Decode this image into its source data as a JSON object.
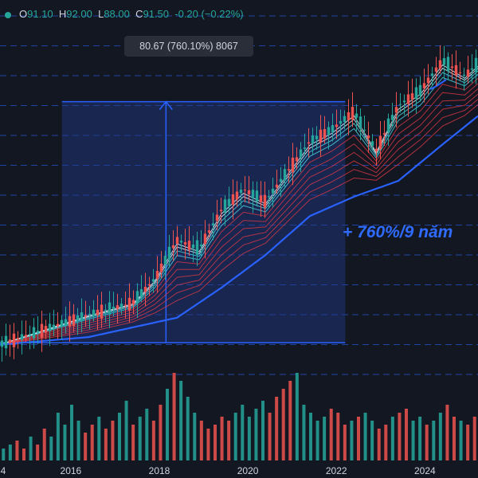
{
  "ohlc": {
    "o_label": "O",
    "o": "91.10",
    "h_label": "H",
    "h": "92.00",
    "l_label": "L",
    "l": "88.00",
    "c_label": "C",
    "c": "91.50",
    "change": "-0.20 (−0.22%)"
  },
  "measure_label": "80.67 (760.10%) 8067",
  "annotation": "+ 760%/9 năm",
  "colors": {
    "background": "#131722",
    "up": "#26a69a",
    "down": "#ef5350",
    "measure_box": "#1e3a8a",
    "measure_line": "#2962ff",
    "annotation": "#2f6bff"
  },
  "chart_data": {
    "type": "candlestick",
    "x_ticks": [
      "4",
      "2016",
      "2018",
      "2020",
      "2022",
      "2024"
    ],
    "x_range": [
      2014.0,
      2024.8
    ],
    "y_range": [
      0,
      120
    ],
    "measure": {
      "from_x": 2015.4,
      "to_x": 2021.8,
      "from_y": 10.6,
      "to_y": 91.3,
      "change": 80.67,
      "change_pct": 760.1,
      "bars": 8067
    },
    "series": [
      {
        "name": "price",
        "x": [
          2014.0,
          2015.0,
          2016.0,
          2017.0,
          2017.5,
          2018.0,
          2018.5,
          2019.0,
          2019.5,
          2020.0,
          2020.5,
          2021.0,
          2021.5,
          2022.0,
          2022.5,
          2023.0,
          2023.5,
          2024.0,
          2024.5,
          2024.8
        ],
        "y": [
          10,
          15,
          20,
          24,
          32,
          45,
          42,
          55,
          62,
          58,
          68,
          78,
          82,
          88,
          75,
          90,
          95,
          105,
          100,
          104
        ]
      },
      {
        "name": "long_ma",
        "x": [
          2014.0,
          2016.0,
          2018.0,
          2019.0,
          2020.0,
          2021.0,
          2022.0,
          2023.0,
          2024.0,
          2024.8
        ],
        "y": [
          10.0,
          12.5,
          19.0,
          29.0,
          40.0,
          53.0,
          59.5,
          64.8,
          77.0,
          86.5
        ]
      }
    ],
    "volume": [
      3,
      4,
      5,
      3,
      6,
      4,
      8,
      6,
      12,
      9,
      14,
      10,
      7,
      9,
      11,
      8,
      10,
      12,
      15,
      9,
      11,
      13,
      10,
      14,
      18,
      22,
      20,
      16,
      12,
      10,
      8,
      9,
      11,
      10,
      12,
      14,
      11,
      13,
      15,
      12,
      16,
      18,
      20,
      22,
      14,
      12,
      10,
      11,
      13,
      12,
      9,
      10,
      11,
      12,
      10,
      8,
      9,
      11,
      12,
      13,
      10,
      11,
      9,
      10,
      12,
      14,
      11,
      10,
      9,
      11
    ]
  }
}
